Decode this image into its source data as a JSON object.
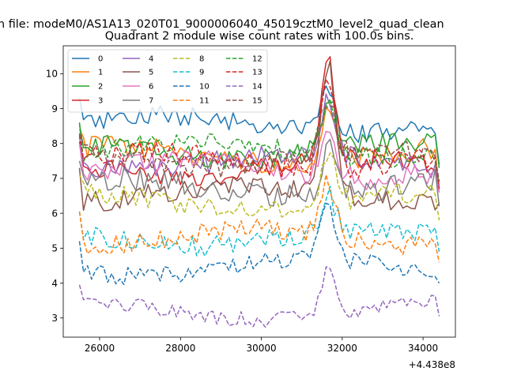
{
  "figure": {
    "suptitle": "n file: modeM0/AS1A13_020T01_9000006040_45019cztM0_level2_quad_clean",
    "offset_label": "+4.438e8"
  },
  "chart_data": {
    "type": "line",
    "title": "Quadrant 2 module wise count rates with 100.0s bins.",
    "xlabel": "",
    "ylabel": "",
    "x_offset": 443800000,
    "xlim": [
      25100,
      34800
    ],
    "ylim": [
      2.45,
      10.8
    ],
    "xticks": [
      26000,
      28000,
      30000,
      32000,
      34000
    ],
    "yticks": [
      3,
      4,
      5,
      6,
      7,
      8,
      9,
      10
    ],
    "grid": false,
    "legend": {
      "placement": "top-left",
      "columns": 4
    },
    "x_start": 25500,
    "x_step": 100,
    "bump_center": 31650,
    "series": [
      {
        "name": "0",
        "color": "#1f77b4",
        "dash": "solid",
        "base": 8.55,
        "amp": 1.3,
        "noise": 0.28,
        "end": 7.4
      },
      {
        "name": "1",
        "color": "#ff7f0e",
        "dash": "solid",
        "base": 7.65,
        "amp": 1.35,
        "noise": 0.32,
        "end": 6.6
      },
      {
        "name": "2",
        "color": "#2ca02c",
        "dash": "solid",
        "base": 7.8,
        "amp": 1.55,
        "noise": 0.3,
        "end": 7.3
      },
      {
        "name": "3",
        "color": "#d62728",
        "dash": "solid",
        "base": 7.3,
        "amp": 2.9,
        "noise": 0.3,
        "end": 6.8
      },
      {
        "name": "4",
        "color": "#9467bd",
        "dash": "solid",
        "base": 7.45,
        "amp": 1.6,
        "noise": 0.32,
        "end": 6.7
      },
      {
        "name": "5",
        "color": "#8c564b",
        "dash": "solid",
        "base": 6.55,
        "amp": 3.75,
        "noise": 0.3,
        "end": 6.3
      },
      {
        "name": "6",
        "color": "#e377c2",
        "dash": "solid",
        "base": 7.25,
        "amp": 1.4,
        "noise": 0.33,
        "end": 6.6
      },
      {
        "name": "7",
        "color": "#7f7f7f",
        "dash": "solid",
        "base": 6.75,
        "amp": 1.35,
        "noise": 0.35,
        "end": 6.2
      },
      {
        "name": "8",
        "color": "#bcbd22",
        "dash": "dashed",
        "base": 6.35,
        "amp": 1.5,
        "noise": 0.3,
        "end": 5.8
      },
      {
        "name": "9",
        "color": "#17becf",
        "dash": "dashed",
        "base": 5.3,
        "amp": 1.05,
        "noise": 0.28,
        "end": 4.9
      },
      {
        "name": "10",
        "color": "#1f77b4",
        "dash": "dashed",
        "base": 4.45,
        "amp": 1.6,
        "noise": 0.25,
        "end": 4.0
      },
      {
        "name": "11",
        "color": "#ff7f0e",
        "dash": "dashed",
        "base": 5.3,
        "amp": 1.55,
        "noise": 0.28,
        "end": 4.6
      },
      {
        "name": "12",
        "color": "#2ca02c",
        "dash": "dashed",
        "base": 7.85,
        "amp": 1.6,
        "noise": 0.3,
        "end": 6.9
      },
      {
        "name": "13",
        "color": "#d62728",
        "dash": "dashed",
        "base": 7.5,
        "amp": 2.7,
        "noise": 0.3,
        "end": 6.7
      },
      {
        "name": "14",
        "color": "#9467bd",
        "dash": "dashed",
        "base": 3.2,
        "amp": 1.3,
        "noise": 0.22,
        "end": 3.05
      },
      {
        "name": "15",
        "color": "#8c564b",
        "dash": "dashed",
        "base": 7.55,
        "amp": 1.65,
        "noise": 0.3,
        "end": 6.9
      }
    ]
  }
}
